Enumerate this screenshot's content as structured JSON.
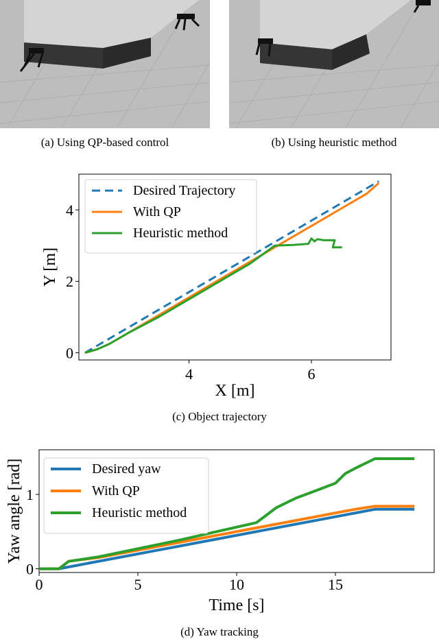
{
  "captions": {
    "a": "(a) Using QP-based control",
    "b": "(b) Using heuristic method",
    "c": "(c) Object trajectory",
    "d": "(d) Yaw tracking"
  },
  "colors": {
    "blue": "#1f77b4",
    "orange": "#ff7f0e",
    "green": "#2ca02c",
    "ground": "#b9b9b9",
    "box_top": "#d4d4d4",
    "box_side": "#353535"
  },
  "chart_data": [
    {
      "type": "line",
      "title": "",
      "xlabel": "X [m]",
      "ylabel": "Y [m]",
      "xticks": [
        4,
        6
      ],
      "yticks": [
        0,
        2,
        4
      ],
      "xlim": [
        2.2,
        7.3
      ],
      "ylim": [
        -0.2,
        5.0
      ],
      "grid": false,
      "legend": "top-left",
      "series": [
        {
          "name": "Desired Trajectory",
          "color": "#1f77b4",
          "style": "dashed",
          "x": [
            2.3,
            7.1
          ],
          "y": [
            0.0,
            4.8
          ]
        },
        {
          "name": "With QP",
          "color": "#ff7f0e",
          "style": "solid",
          "x": [
            2.3,
            2.5,
            2.7,
            3.0,
            3.5,
            4.0,
            4.5,
            5.0,
            5.5,
            6.0,
            6.5,
            6.9,
            7.1
          ],
          "y": [
            0.0,
            0.1,
            0.25,
            0.55,
            1.05,
            1.55,
            2.05,
            2.55,
            3.05,
            3.55,
            4.05,
            4.45,
            4.75
          ]
        },
        {
          "name": "Heuristic method",
          "color": "#2ca02c",
          "style": "solid",
          "x": [
            2.3,
            2.5,
            2.7,
            3.0,
            3.5,
            4.0,
            4.5,
            5.0,
            5.4,
            5.7,
            5.95,
            6.0,
            6.05,
            6.1,
            6.2,
            6.38,
            6.35,
            6.5
          ],
          "y": [
            0.0,
            0.1,
            0.25,
            0.55,
            1.0,
            1.5,
            2.0,
            2.5,
            3.0,
            3.02,
            3.05,
            3.2,
            3.12,
            3.18,
            3.15,
            3.15,
            2.95,
            2.95
          ]
        }
      ]
    },
    {
      "type": "line",
      "title": "",
      "xlabel": "Time [s]",
      "ylabel": "Yaw angle [rad]",
      "xticks": [
        0,
        5,
        10,
        15
      ],
      "yticks": [
        0,
        1
      ],
      "xlim": [
        0,
        20
      ],
      "ylim": [
        -0.05,
        1.6
      ],
      "grid": false,
      "legend": "top-left",
      "series": [
        {
          "name": "Desired yaw",
          "color": "#1f77b4",
          "style": "solid",
          "x": [
            0,
            1,
            17,
            19
          ],
          "y": [
            0,
            0,
            0.8,
            0.8
          ]
        },
        {
          "name": "With QP",
          "color": "#ff7f0e",
          "style": "solid",
          "x": [
            0,
            1.0,
            1.5,
            2.0,
            3,
            5,
            7,
            9,
            11,
            13,
            15,
            16,
            17,
            19
          ],
          "y": [
            0,
            0.0,
            0.1,
            0.12,
            0.15,
            0.25,
            0.35,
            0.45,
            0.55,
            0.65,
            0.75,
            0.8,
            0.84,
            0.84
          ]
        },
        {
          "name": "Heuristic method",
          "color": "#2ca02c",
          "style": "solid",
          "x": [
            0,
            1.0,
            1.5,
            2.0,
            3,
            5,
            7,
            9,
            11,
            11.5,
            12,
            13,
            14,
            15,
            15.5,
            16,
            17,
            19
          ],
          "y": [
            0,
            0.0,
            0.1,
            0.12,
            0.16,
            0.27,
            0.38,
            0.5,
            0.62,
            0.72,
            0.82,
            0.95,
            1.05,
            1.15,
            1.28,
            1.35,
            1.48,
            1.48
          ]
        }
      ]
    }
  ]
}
